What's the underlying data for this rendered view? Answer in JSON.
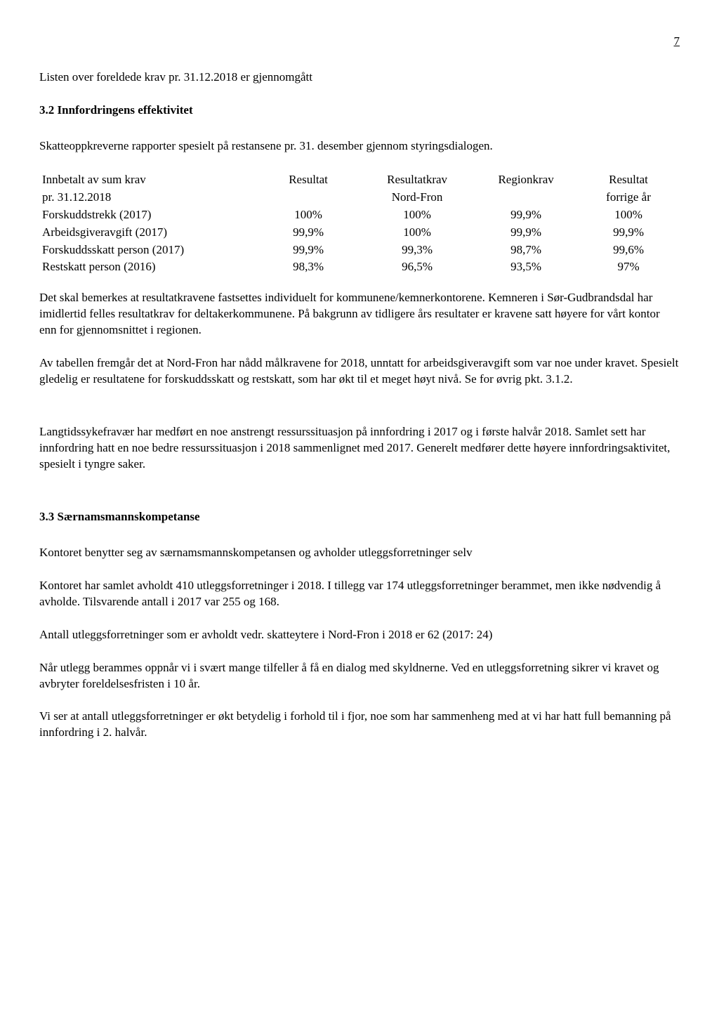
{
  "page_number": "7",
  "intro_line": "Listen over foreldede krav pr. 31.12.2018 er gjennomgått",
  "section32_heading": "3.2 Innfordringens effektivitet",
  "section32_intro": "Skatteoppkreverne rapporter spesielt på restansene pr. 31. desember gjennom styringsdialogen.",
  "table": {
    "columns": [
      "",
      "Resultat",
      "Resultatkrav",
      "Regionkrav",
      "Resultat"
    ],
    "header_row1": {
      "label": "Innbetalt av sum krav",
      "c1": "Resultat",
      "c2": "Resultatkrav",
      "c3": "Regionkrav",
      "c4": "Resultat"
    },
    "header_row2": {
      "label": "pr. 31.12.2018",
      "c1": "",
      "c2": "Nord-Fron",
      "c3": "",
      "c4": "forrige år"
    },
    "rows": [
      {
        "label": "Forskuddstrekk (2017)",
        "c1": "100%",
        "c2": "100%",
        "c3": "99,9%",
        "c4": "100%"
      },
      {
        "label": "Arbeidsgiveravgift (2017)",
        "c1": "99,9%",
        "c2": "100%",
        "c3": "99,9%",
        "c4": "99,9%"
      },
      {
        "label": "Forskuddsskatt person (2017)",
        "c1": "99,9%",
        "c2": "99,3%",
        "c3": "98,7%",
        "c4": "99,6%"
      },
      {
        "label": "Restskatt person (2016)",
        "c1": "98,3%",
        "c2": "96,5%",
        "c3": "93,5%",
        "c4": "97%"
      }
    ]
  },
  "section32_body1": "Det skal bemerkes at resultatkravene fastsettes individuelt for kommunene/kemnerkontorene. Kemneren i Sør-Gudbrandsdal har imidlertid felles resultatkrav for deltakerkommunene. På bakgrunn av tidligere års resultater er kravene satt høyere for vårt kontor enn for gjennomsnittet i regionen.",
  "section32_body2": "Av tabellen fremgår det at Nord-Fron har nådd målkravene for 2018, unntatt for arbeidsgiveravgift som var noe under kravet. Spesielt gledelig er resultatene for forskuddsskatt og restskatt, som har økt til et meget høyt nivå. Se for øvrig pkt. 3.1.2.",
  "section32_body3": "Langtidssykefravær har medført en noe anstrengt ressurssituasjon på innfordring i 2017 og i første halvår 2018. Samlet sett har innfordring hatt en noe bedre ressurssituasjon i 2018 sammenlignet med 2017. Generelt medfører dette høyere innfordringsaktivitet, spesielt i tyngre saker.",
  "section33_heading": "3.3 Særnamsmannskompetanse",
  "section33_body1": "Kontoret benytter seg av særnamsmannskompetansen og avholder utleggsforretninger selv",
  "section33_body2": "Kontoret har samlet avholdt 410 utleggsforretninger i 2018. I tillegg var 174 utleggsforretninger berammet, men ikke nødvendig å avholde. Tilsvarende antall i 2017 var 255 og 168.",
  "section33_body3": "Antall utleggsforretninger som er avholdt vedr. skatteytere i Nord-Fron i 2018 er 62 (2017: 24)",
  "section33_body4": "Når utlegg berammes oppnår vi i svært mange tilfeller å få en dialog med skyldnerne. Ved en utleggsforretning sikrer vi kravet og avbryter foreldelsesfristen i 10 år.",
  "section33_body5": "Vi ser at antall utleggsforretninger er økt betydelig i forhold til i fjor, noe som har sammenheng med at vi har hatt full bemanning på innfordring i 2. halvår."
}
